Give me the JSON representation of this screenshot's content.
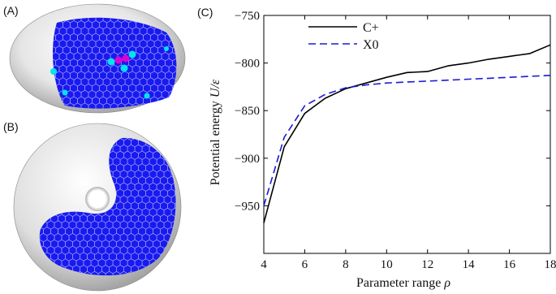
{
  "panels": {
    "a_label": "(A)",
    "b_label": "(B)",
    "c_label": "(C)"
  },
  "colors": {
    "shell_blue": "#1a1aee",
    "hex_edge": "#9aa0ff",
    "defect_cyan": "#00e5ee",
    "defect_magenta": "#e000d0",
    "surface_gray": "#d8d8d8",
    "line_cplus": "#000000",
    "line_x0": "#1a1ad6"
  },
  "chart_data": {
    "type": "line",
    "xlabel_main": "Parameter range ",
    "xlabel_symbol": "ρ",
    "ylabel_main": "Potential energy ",
    "ylabel_symbol": "U/ε",
    "xlim": [
      4,
      18
    ],
    "ylim": [
      -1000,
      -750
    ],
    "xticks": [
      4,
      6,
      8,
      10,
      12,
      14,
      16,
      18
    ],
    "yticks": [
      -950,
      -900,
      -850,
      -800,
      -750
    ],
    "ytick_labels": [
      "−950",
      "−900",
      "−850",
      "−800",
      "−750"
    ],
    "legend_position": "top-left",
    "series": [
      {
        "name": "C+",
        "style": "solid",
        "x": [
          4,
          5,
          6,
          7,
          8,
          9,
          10,
          11,
          12,
          13,
          14,
          15,
          16,
          17,
          18
        ],
        "y": [
          -968,
          -888,
          -853,
          -837,
          -827,
          -821,
          -815,
          -810,
          -809,
          -803,
          -800,
          -796,
          -793,
          -790,
          -781
        ]
      },
      {
        "name": "X0",
        "style": "dashed",
        "x": [
          4,
          5,
          6,
          7,
          8,
          9,
          10,
          11,
          12,
          13,
          14,
          15,
          16,
          17,
          18
        ],
        "y": [
          -950,
          -878,
          -845,
          -833,
          -826,
          -823,
          -821,
          -820,
          -819,
          -818,
          -817,
          -816,
          -815,
          -814,
          -813
        ]
      }
    ]
  }
}
